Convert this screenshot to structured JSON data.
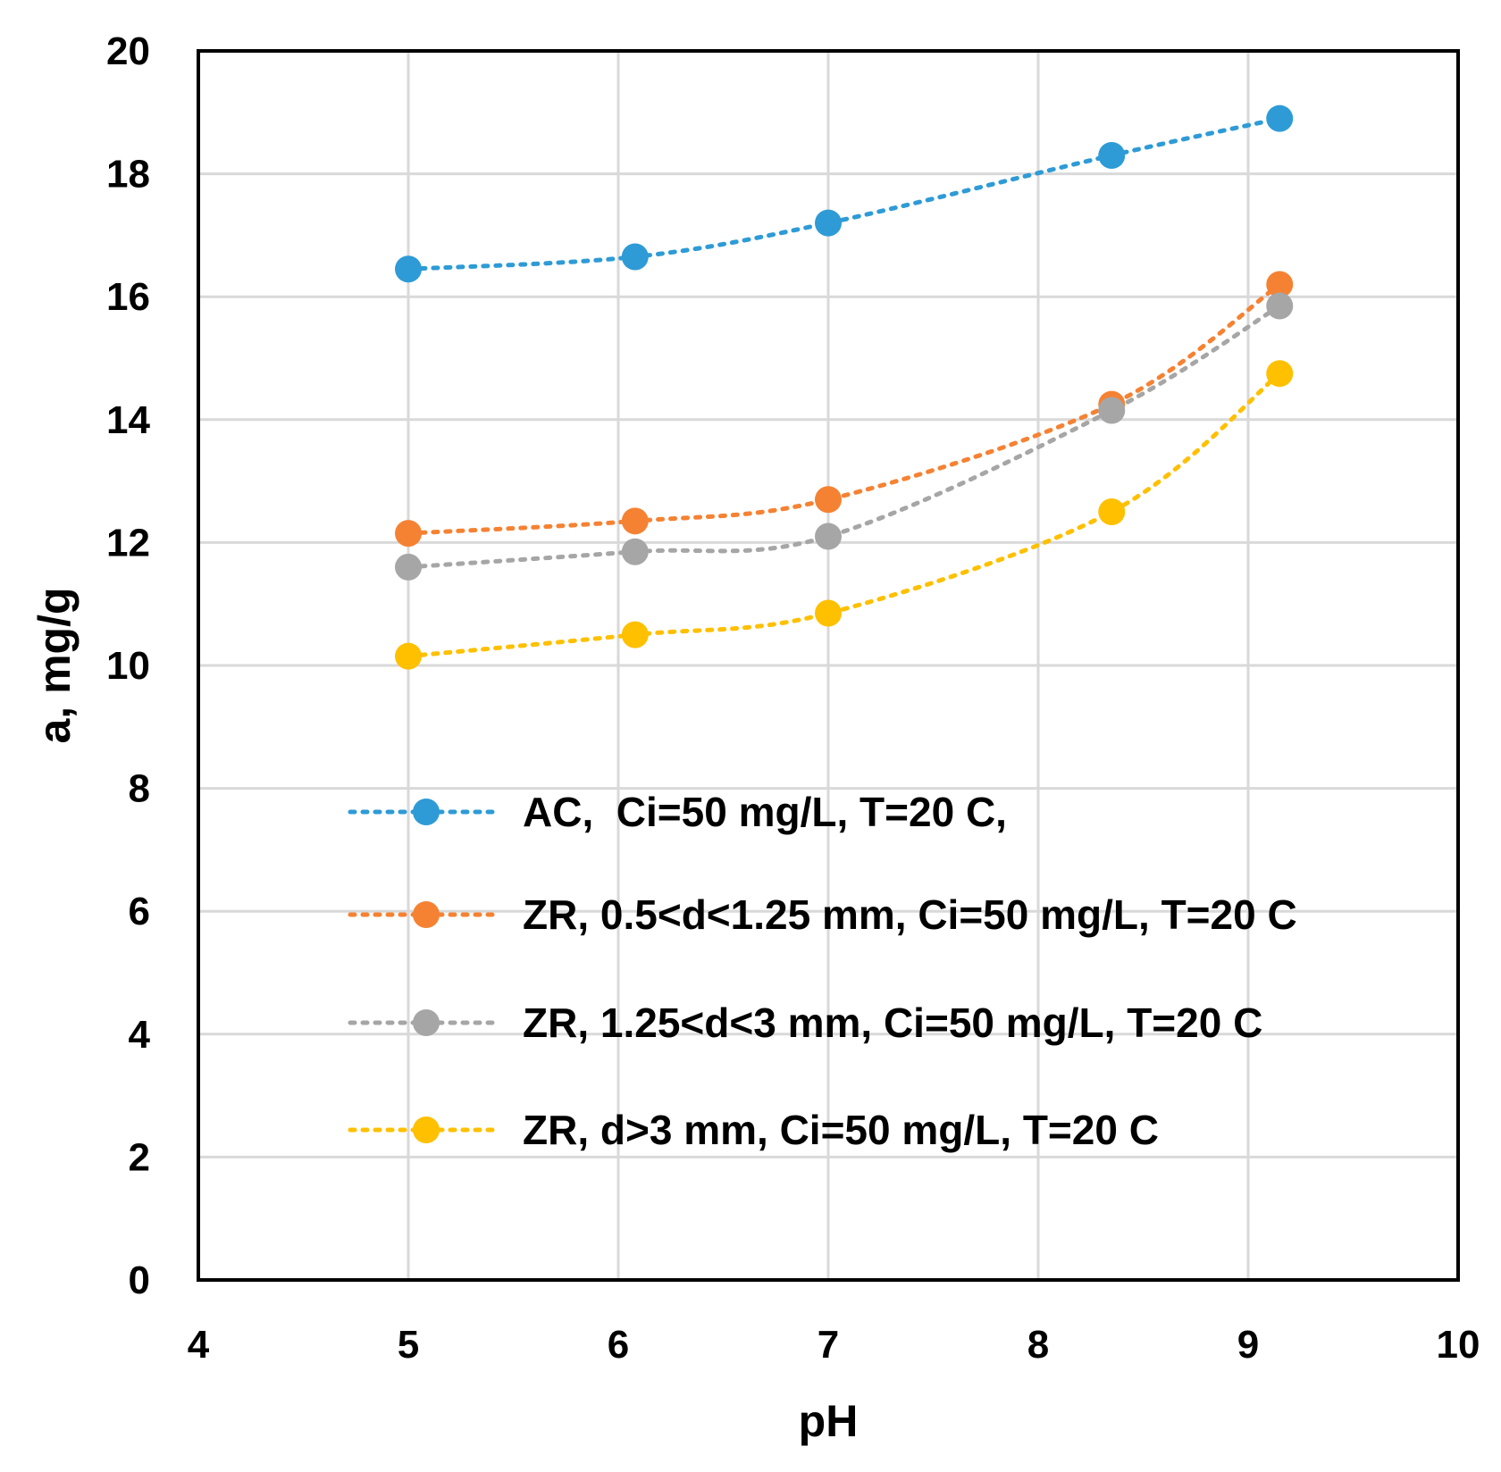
{
  "chart_data": {
    "type": "scatter",
    "title": "",
    "xlabel": "pH",
    "ylabel": "a, mg/g",
    "xlim": [
      4,
      10
    ],
    "ylim": [
      0,
      20
    ],
    "xticks": [
      4,
      5,
      6,
      7,
      8,
      9,
      10
    ],
    "yticks": [
      0,
      2,
      4,
      6,
      8,
      10,
      12,
      14,
      16,
      18,
      20
    ],
    "grid": true,
    "legend_position": "center-right",
    "series": [
      {
        "name": "AC,  Ci=50 mg/L, T=20 C,",
        "color": "#2e9bd6",
        "line_style": "dotted",
        "marker": "circle",
        "x": [
          5.0,
          6.08,
          7.0,
          8.35,
          9.15
        ],
        "y": [
          16.45,
          16.65,
          17.2,
          18.3,
          18.9
        ]
      },
      {
        "name": "ZR, 0.5<d<1.25 mm, Ci=50 mg/L, T=20 C",
        "color": "#f58233",
        "line_style": "dotted",
        "marker": "circle",
        "x": [
          5.0,
          6.08,
          7.0,
          8.35,
          9.15
        ],
        "y": [
          12.15,
          12.35,
          12.7,
          14.25,
          16.2
        ]
      },
      {
        "name": "ZR, 1.25<d<3 mm, Ci=50 mg/L, T=20 C",
        "color": "#a6a6a6",
        "line_style": "dotted",
        "marker": "circle",
        "x": [
          5.0,
          6.08,
          7.0,
          8.35,
          9.15
        ],
        "y": [
          11.6,
          11.85,
          12.1,
          14.15,
          15.85
        ]
      },
      {
        "name": "ZR, d>3 mm, Ci=50 mg/L, T=20 C",
        "color": "#ffc000",
        "line_style": "dotted",
        "marker": "circle",
        "x": [
          5.0,
          6.08,
          7.0,
          8.35,
          9.15
        ],
        "y": [
          10.15,
          10.5,
          10.85,
          12.5,
          14.75
        ]
      }
    ]
  }
}
